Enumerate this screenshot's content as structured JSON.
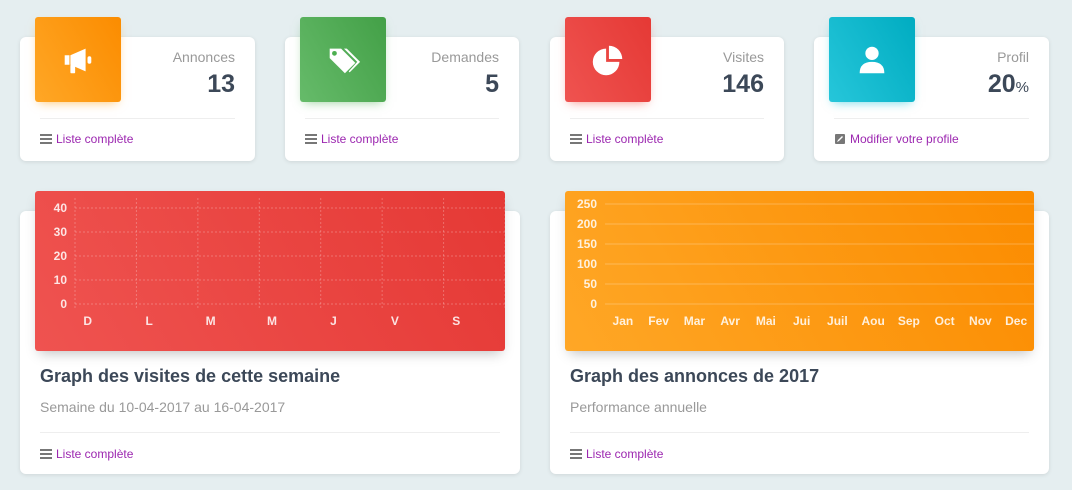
{
  "stats": [
    {
      "label": "Annonces",
      "value": "13",
      "unit": "",
      "icon": "megaphone-icon",
      "link": "Liste complète",
      "link_icon": "list-icon",
      "color_from": "#ffa726",
      "color_to": "#fb8c00"
    },
    {
      "label": "Demandes",
      "value": "5",
      "unit": "",
      "icon": "tags-icon",
      "link": "Liste complète",
      "link_icon": "list-icon",
      "color_from": "#66bb6a",
      "color_to": "#43a047"
    },
    {
      "label": "Visites",
      "value": "146",
      "unit": "",
      "icon": "pie-chart-icon",
      "link": "Liste complète",
      "link_icon": "list-icon",
      "color_from": "#ef5350",
      "color_to": "#e53935"
    },
    {
      "label": "Profil",
      "value": "20",
      "unit": "%",
      "icon": "user-icon",
      "link": "Modifier votre profile",
      "link_icon": "edit-icon",
      "color_from": "#26c6da",
      "color_to": "#00acc1"
    }
  ],
  "charts": [
    {
      "title": "Graph des visites de cette semaine",
      "subtitle": "Semaine du 10-04-2017 au 16-04-2017",
      "link": "Liste complète",
      "color_from": "#ef5350",
      "color_to": "#e53935"
    },
    {
      "title": "Graph des annonces de 2017",
      "subtitle": "Performance annuelle",
      "link": "Liste complète",
      "color_from": "#ffa726",
      "color_to": "#fb8c00"
    }
  ],
  "chart_data": [
    {
      "type": "line",
      "title": "",
      "xlabel": "",
      "ylabel": "",
      "categories": [
        "D",
        "L",
        "M",
        "M",
        "J",
        "V",
        "S"
      ],
      "yticks": [
        0,
        10,
        20,
        30,
        40
      ],
      "ylim": [
        0,
        40
      ],
      "grid": true,
      "series": [
        {
          "values": [
            0,
            0,
            0,
            0,
            0,
            0,
            0
          ]
        }
      ]
    },
    {
      "type": "line",
      "title": "",
      "xlabel": "",
      "ylabel": "",
      "categories": [
        "Jan",
        "Fev",
        "Mar",
        "Avr",
        "Mai",
        "Jui",
        "Juil",
        "Aou",
        "Sep",
        "Oct",
        "Nov",
        "Dec"
      ],
      "yticks": [
        0,
        50,
        100,
        150,
        200,
        250
      ],
      "ylim": [
        0,
        250
      ],
      "grid": true,
      "series": [
        {
          "values": [
            0,
            0,
            0,
            0,
            0,
            0,
            0,
            0,
            0,
            0,
            0,
            0
          ]
        }
      ]
    }
  ]
}
